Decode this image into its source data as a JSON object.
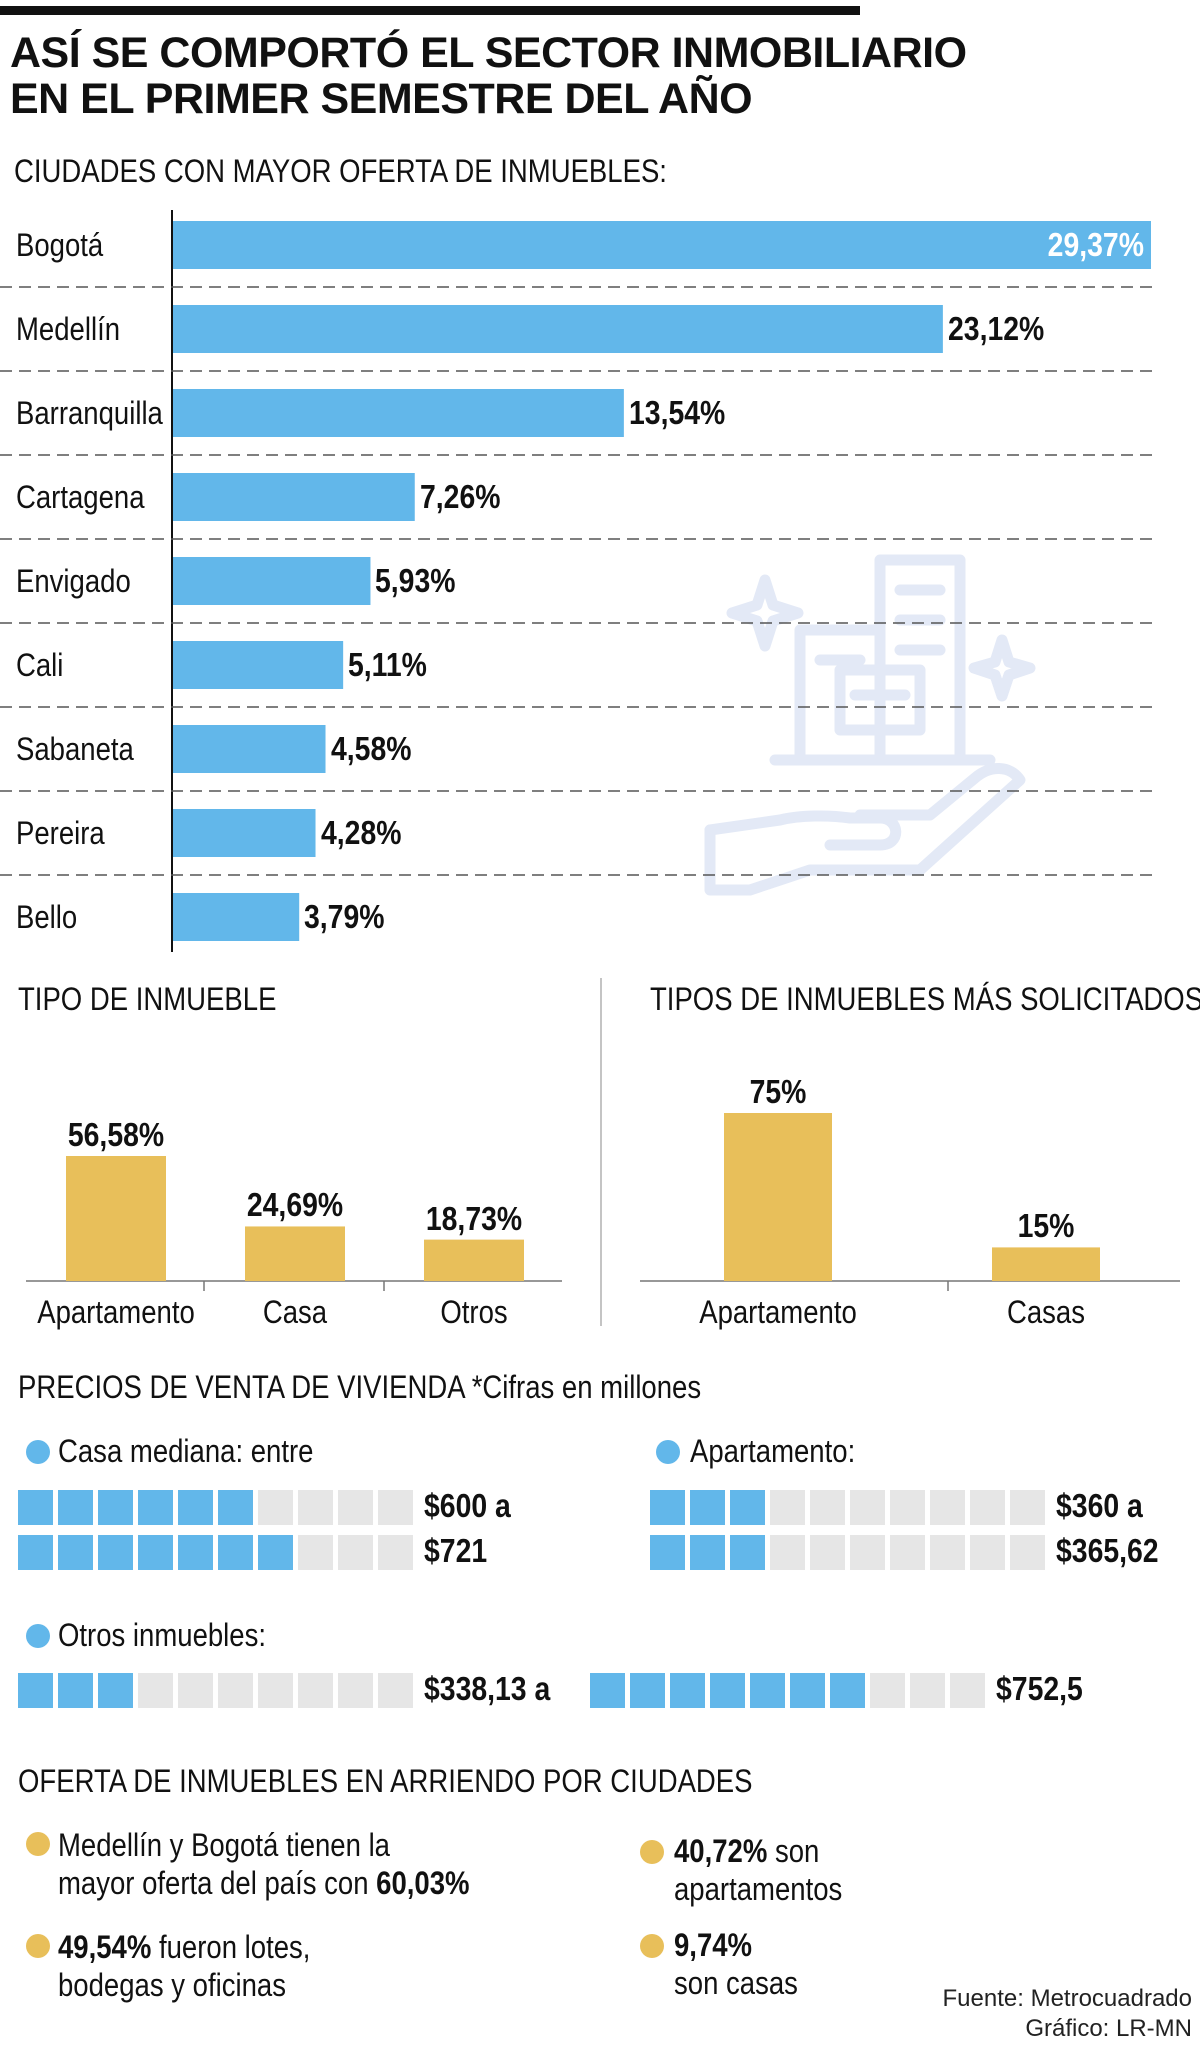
{
  "header": {
    "title_line1": "ASÍ SE COMPORTÓ EL SECTOR INMOBILIARIO",
    "title_line2": "EN EL PRIMER SEMESTRE DEL AÑO"
  },
  "chart_data": [
    {
      "type": "bar",
      "orientation": "horizontal",
      "title": "CIUDADES CON MAYOR OFERTA DE INMUEBLES:",
      "categories": [
        "Bogotá",
        "Medellín",
        "Barranquilla",
        "Cartagena",
        "Envigado",
        "Cali",
        "Sabaneta",
        "Pereira",
        "Bello"
      ],
      "values": [
        29.37,
        23.12,
        13.54,
        7.26,
        5.93,
        5.11,
        4.58,
        4.28,
        3.79
      ],
      "labels": [
        "29,37%",
        "23,12%",
        "13,54%",
        "7,26%",
        "5,93%",
        "5,11%",
        "4,58%",
        "4,28%",
        "3,79%"
      ],
      "xlim": [
        0,
        29.37
      ],
      "color": "#62b7ea"
    },
    {
      "type": "bar",
      "title": "TIPO DE INMUEBLE",
      "categories": [
        "Apartamento",
        "Casa",
        "Otros"
      ],
      "values": [
        56.58,
        24.69,
        18.73
      ],
      "labels": [
        "56,58%",
        "24,69%",
        "18,73%"
      ],
      "ylim": [
        0,
        56.58
      ],
      "color": "#e8bf5a"
    },
    {
      "type": "bar",
      "title": "TIPOS DE INMUEBLES MÁS SOLICITADOS",
      "categories": [
        "Apartamento",
        "Casas"
      ],
      "values": [
        75,
        15
      ],
      "labels": [
        "75%",
        "15%"
      ],
      "ylim": [
        0,
        75
      ],
      "color": "#e8bf5a"
    }
  ],
  "prices": {
    "title": "PRECIOS DE VENTA DE VIVIENDA",
    "note": "*Cifras en millones",
    "casa": {
      "label": "Casa mediana: entre",
      "min": "$600 a",
      "max": "$721",
      "min_filled": 6,
      "max_filled": 7,
      "total": 10
    },
    "apartamento": {
      "label": "Apartamento:",
      "min": "$360 a",
      "max": "$365,62",
      "min_filled": 3,
      "max_filled": 3,
      "total": 10
    },
    "otros": {
      "label": "Otros inmuebles:",
      "min": "$338,13 a",
      "max": "$752,5",
      "min_filled": 3,
      "max_filled": 7,
      "total": 10
    }
  },
  "rental": {
    "title": "OFERTA DE INMUEBLES EN ARRIENDO POR CIUDADES",
    "item1_line1": "Medellín y Bogotá tienen la",
    "item1_line2_pre": "mayor oferta del país con ",
    "item1_line2_bold": "60,03%",
    "item2_bold": "49,54%",
    "item2_line1_rest": " fueron lotes,",
    "item2_line2": "bodegas y oficinas",
    "item3_bold": "40,72%",
    "item3_rest": " son",
    "item3_line2": "apartamentos",
    "item4_bold": "9,74%",
    "item4_line2": "son casas"
  },
  "footer": {
    "source": "Fuente: Metrocuadrado",
    "credit": "Gráfico: LR-MN"
  },
  "colors": {
    "blue": "#62b7ea",
    "gold": "#e8bf5a",
    "icon": "#e3e9f6"
  }
}
